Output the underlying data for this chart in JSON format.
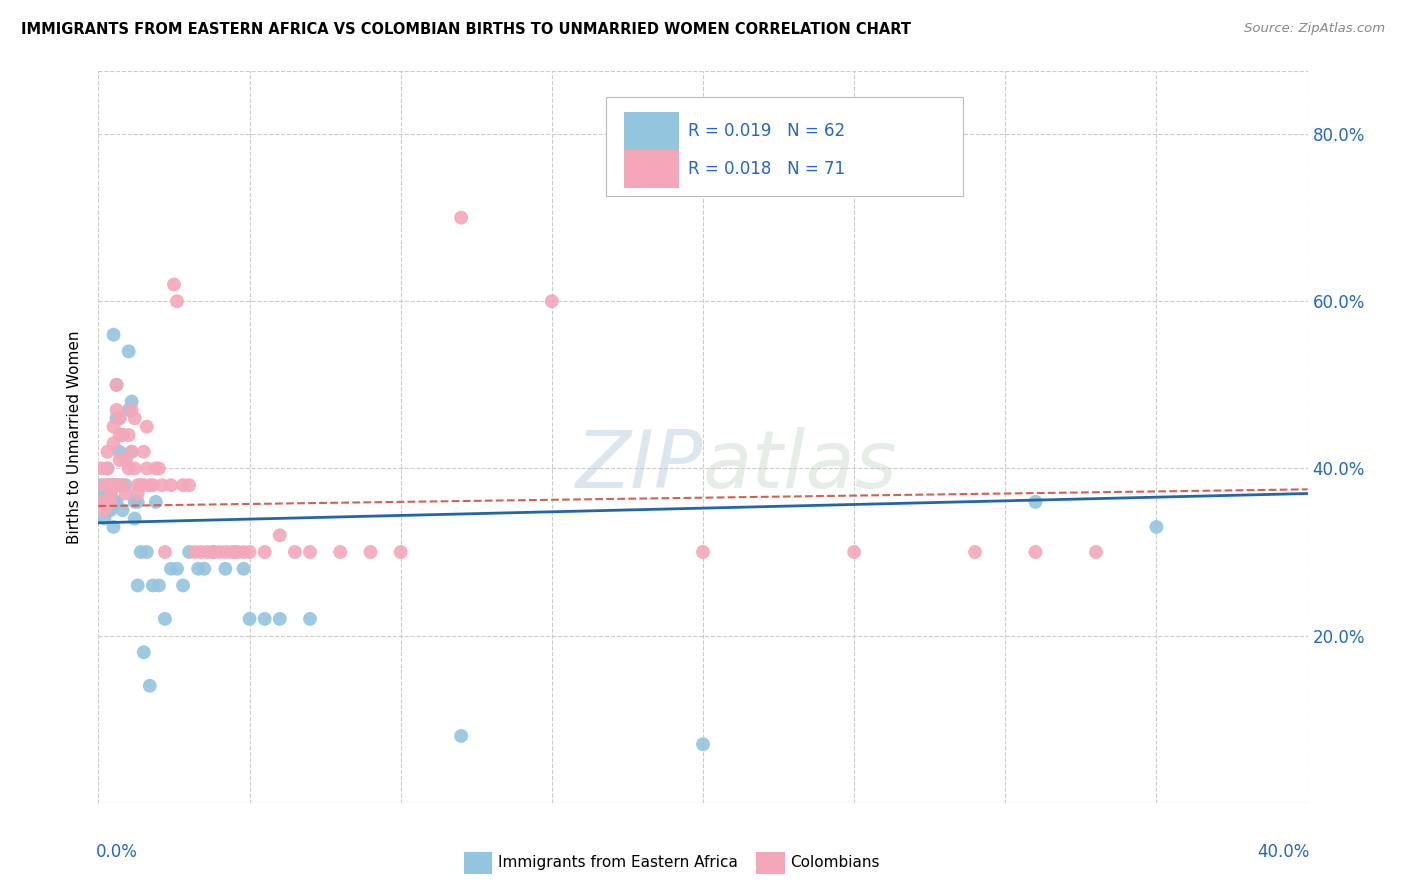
{
  "title": "IMMIGRANTS FROM EASTERN AFRICA VS COLOMBIAN BIRTHS TO UNMARRIED WOMEN CORRELATION CHART",
  "source": "Source: ZipAtlas.com",
  "ylabel": "Births to Unmarried Women",
  "color_blue": "#92c5de",
  "color_pink": "#f4a7b9",
  "color_blue_line": "#2166ac",
  "color_pink_line": "#d6604d",
  "watermark_color": "#c8d8e8",
  "x_lim": [
    0.0,
    0.4
  ],
  "y_lim": [
    0.0,
    0.875
  ],
  "blue_scatter_x": [
    0.001,
    0.001,
    0.002,
    0.002,
    0.002,
    0.003,
    0.003,
    0.003,
    0.003,
    0.004,
    0.004,
    0.004,
    0.004,
    0.005,
    0.005,
    0.005,
    0.005,
    0.006,
    0.006,
    0.006,
    0.006,
    0.007,
    0.007,
    0.007,
    0.008,
    0.008,
    0.009,
    0.009,
    0.01,
    0.01,
    0.011,
    0.011,
    0.012,
    0.012,
    0.013,
    0.013,
    0.014,
    0.015,
    0.016,
    0.017,
    0.018,
    0.019,
    0.02,
    0.022,
    0.024,
    0.026,
    0.028,
    0.03,
    0.033,
    0.035,
    0.038,
    0.042,
    0.045,
    0.048,
    0.05,
    0.055,
    0.06,
    0.07,
    0.12,
    0.2,
    0.31,
    0.35
  ],
  "blue_scatter_y": [
    0.38,
    0.36,
    0.34,
    0.37,
    0.36,
    0.38,
    0.35,
    0.37,
    0.4,
    0.37,
    0.35,
    0.38,
    0.37,
    0.56,
    0.36,
    0.33,
    0.38,
    0.5,
    0.46,
    0.38,
    0.36,
    0.46,
    0.38,
    0.42,
    0.44,
    0.35,
    0.41,
    0.38,
    0.54,
    0.47,
    0.42,
    0.48,
    0.36,
    0.34,
    0.36,
    0.26,
    0.3,
    0.18,
    0.3,
    0.14,
    0.26,
    0.36,
    0.26,
    0.22,
    0.28,
    0.28,
    0.26,
    0.3,
    0.28,
    0.28,
    0.3,
    0.28,
    0.3,
    0.28,
    0.22,
    0.22,
    0.22,
    0.22,
    0.08,
    0.07,
    0.36,
    0.33
  ],
  "pink_scatter_x": [
    0.001,
    0.001,
    0.002,
    0.002,
    0.003,
    0.003,
    0.003,
    0.004,
    0.004,
    0.004,
    0.005,
    0.005,
    0.005,
    0.006,
    0.006,
    0.006,
    0.007,
    0.007,
    0.007,
    0.008,
    0.008,
    0.009,
    0.009,
    0.01,
    0.01,
    0.011,
    0.011,
    0.012,
    0.012,
    0.013,
    0.013,
    0.014,
    0.015,
    0.015,
    0.016,
    0.016,
    0.017,
    0.018,
    0.019,
    0.02,
    0.021,
    0.022,
    0.024,
    0.025,
    0.026,
    0.028,
    0.03,
    0.032,
    0.034,
    0.036,
    0.038,
    0.04,
    0.042,
    0.044,
    0.046,
    0.048,
    0.05,
    0.055,
    0.06,
    0.065,
    0.07,
    0.08,
    0.09,
    0.1,
    0.12,
    0.15,
    0.2,
    0.25,
    0.29,
    0.31,
    0.33
  ],
  "pink_scatter_y": [
    0.36,
    0.4,
    0.35,
    0.38,
    0.36,
    0.4,
    0.42,
    0.37,
    0.36,
    0.38,
    0.45,
    0.43,
    0.38,
    0.5,
    0.47,
    0.38,
    0.46,
    0.44,
    0.41,
    0.44,
    0.38,
    0.37,
    0.41,
    0.44,
    0.4,
    0.47,
    0.42,
    0.46,
    0.4,
    0.38,
    0.37,
    0.38,
    0.38,
    0.42,
    0.45,
    0.4,
    0.38,
    0.38,
    0.4,
    0.4,
    0.38,
    0.3,
    0.38,
    0.62,
    0.6,
    0.38,
    0.38,
    0.3,
    0.3,
    0.3,
    0.3,
    0.3,
    0.3,
    0.3,
    0.3,
    0.3,
    0.3,
    0.3,
    0.32,
    0.3,
    0.3,
    0.3,
    0.3,
    0.3,
    0.7,
    0.6,
    0.3,
    0.3,
    0.3,
    0.3,
    0.3
  ],
  "blue_line_x": [
    0.0,
    0.4
  ],
  "blue_line_y": [
    0.335,
    0.37
  ],
  "pink_line_x": [
    0.0,
    0.4
  ],
  "pink_line_y": [
    0.355,
    0.375
  ],
  "ytick_positions": [
    0.2,
    0.4,
    0.6,
    0.8
  ],
  "ytick_labels": [
    "20.0%",
    "40.0%",
    "60.0%",
    "80.0%"
  ],
  "xtick_positions": [
    0.0,
    0.05,
    0.1,
    0.15,
    0.2,
    0.25,
    0.3,
    0.35,
    0.4
  ],
  "legend_r1": "R = 0.019",
  "legend_n1": "N = 62",
  "legend_r2": "R = 0.018",
  "legend_n2": "N = 71",
  "legend_text_color": "#2266cc",
  "bottom_label1": "Immigrants from Eastern Africa",
  "bottom_label2": "Colombians"
}
